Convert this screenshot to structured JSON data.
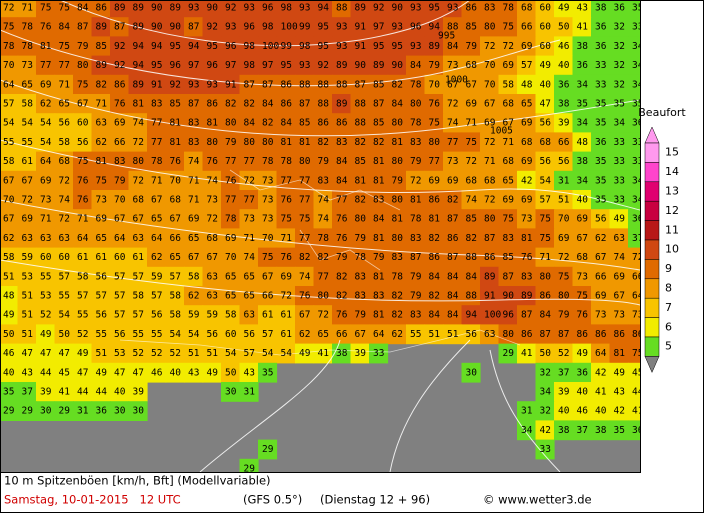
{
  "map": {
    "grid": [
      [
        72,
        71,
        75,
        75,
        84,
        86,
        89,
        89,
        90,
        89,
        93,
        90,
        92,
        93,
        96,
        98,
        93,
        94,
        88,
        89,
        92,
        90,
        93,
        95,
        93,
        86,
        83,
        78,
        68,
        60,
        49,
        43,
        38,
        36,
        35
      ],
      [
        75,
        78,
        76,
        84,
        87,
        89,
        87,
        89,
        90,
        90,
        87,
        92,
        93,
        96,
        98,
        100,
        99,
        95,
        93,
        91,
        97,
        93,
        96,
        94,
        88,
        85,
        80,
        75,
        66,
        60,
        50,
        41,
        36,
        32,
        33
      ],
      [
        78,
        78,
        81,
        75,
        79,
        85,
        92,
        94,
        94,
        95,
        94,
        95,
        96,
        98,
        100,
        99,
        98,
        95,
        93,
        91,
        95,
        95,
        93,
        89,
        84,
        79,
        72,
        72,
        69,
        60,
        46,
        38,
        36,
        32,
        34
      ],
      [
        70,
        73,
        77,
        77,
        80,
        89,
        92,
        94,
        95,
        96,
        97,
        96,
        97,
        98,
        97,
        95,
        93,
        92,
        89,
        90,
        89,
        90,
        84,
        79,
        73,
        68,
        70,
        69,
        57,
        49,
        40,
        36,
        33,
        32,
        34
      ],
      [
        64,
        65,
        69,
        71,
        75,
        82,
        86,
        89,
        91,
        92,
        93,
        93,
        91,
        87,
        87,
        86,
        88,
        88,
        88,
        87,
        85,
        82,
        78,
        70,
        67,
        67,
        70,
        58,
        48,
        40,
        36,
        34,
        33,
        32,
        34
      ],
      [
        57,
        58,
        62,
        65,
        67,
        71,
        76,
        81,
        83,
        85,
        87,
        86,
        82,
        82,
        84,
        86,
        87,
        88,
        89,
        88,
        87,
        84,
        80,
        76,
        72,
        69,
        67,
        68,
        65,
        47,
        38,
        35,
        35,
        35,
        35
      ],
      [
        54,
        54,
        54,
        56,
        60,
        63,
        69,
        74,
        77,
        81,
        83,
        81,
        80,
        84,
        82,
        84,
        85,
        86,
        86,
        88,
        85,
        80,
        78,
        75,
        74,
        71,
        69,
        67,
        69,
        56,
        39,
        34,
        35,
        34,
        36
      ],
      [
        55,
        55,
        54,
        58,
        56,
        62,
        66,
        72,
        77,
        81,
        83,
        80,
        79,
        80,
        80,
        81,
        81,
        82,
        83,
        82,
        82,
        81,
        83,
        80,
        77,
        75,
        72,
        71,
        68,
        68,
        66,
        48,
        36,
        33,
        33
      ],
      [
        58,
        61,
        64,
        68,
        75,
        81,
        83,
        80,
        78,
        76,
        74,
        76,
        77,
        77,
        78,
        78,
        80,
        79,
        84,
        85,
        81,
        80,
        79,
        77,
        73,
        72,
        71,
        68,
        69,
        56,
        56,
        38,
        35,
        33,
        33
      ],
      [
        67,
        67,
        69,
        72,
        76,
        75,
        79,
        72,
        71,
        70,
        71,
        74,
        76,
        72,
        73,
        77,
        77,
        83,
        84,
        81,
        81,
        79,
        72,
        69,
        69,
        68,
        68,
        65,
        42,
        54,
        31,
        34,
        35,
        33,
        34
      ],
      [
        70,
        72,
        73,
        74,
        76,
        73,
        70,
        68,
        67,
        68,
        71,
        73,
        77,
        77,
        73,
        76,
        77,
        74,
        77,
        82,
        83,
        80,
        81,
        86,
        82,
        74,
        72,
        69,
        69,
        57,
        51,
        40,
        35,
        33,
        34
      ],
      [
        67,
        69,
        71,
        72,
        71,
        69,
        67,
        67,
        65,
        67,
        69,
        72,
        78,
        73,
        73,
        75,
        75,
        74,
        76,
        80,
        84,
        81,
        78,
        81,
        87,
        85,
        80,
        75,
        73,
        75,
        70,
        69,
        56,
        49,
        36
      ],
      [
        62,
        63,
        63,
        63,
        64,
        65,
        64,
        63,
        64,
        66,
        65,
        68,
        69,
        71,
        70,
        71,
        77,
        78,
        76,
        79,
        81,
        80,
        83,
        82,
        86,
        82,
        87,
        83,
        81,
        75,
        69,
        67,
        62,
        63,
        37
      ],
      [
        58,
        59,
        60,
        60,
        61,
        61,
        60,
        61,
        62,
        65,
        67,
        67,
        70,
        74,
        75,
        76,
        82,
        82,
        79,
        78,
        79,
        83,
        87,
        86,
        87,
        88,
        86,
        85,
        76,
        71,
        72,
        68,
        67,
        74,
        72
      ],
      [
        51,
        53,
        55,
        57,
        58,
        56,
        57,
        57,
        59,
        57,
        58,
        63,
        65,
        65,
        67,
        69,
        74,
        77,
        82,
        83,
        81,
        78,
        79,
        84,
        84,
        84,
        89,
        87,
        83,
        80,
        75,
        73,
        66,
        69,
        66
      ],
      [
        48,
        51,
        53,
        55,
        57,
        57,
        57,
        58,
        57,
        58,
        62,
        63,
        65,
        65,
        66,
        72,
        76,
        80,
        82,
        83,
        83,
        82,
        79,
        82,
        84,
        88,
        91,
        90,
        89,
        86,
        80,
        75,
        69,
        67,
        64
      ],
      [
        49,
        51,
        52,
        54,
        55,
        56,
        57,
        57,
        56,
        58,
        59,
        59,
        58,
        63,
        61,
        61,
        67,
        72,
        76,
        79,
        81,
        82,
        83,
        84,
        84,
        94,
        100,
        96,
        87,
        84,
        79,
        76,
        73,
        73,
        73
      ],
      [
        50,
        51,
        49,
        50,
        52,
        55,
        56,
        55,
        55,
        54,
        54,
        56,
        60,
        56,
        57,
        61,
        62,
        65,
        66,
        67,
        64,
        62,
        55,
        51,
        51,
        56,
        63,
        80,
        86,
        87,
        87,
        86,
        86,
        86,
        86
      ],
      [
        46,
        47,
        47,
        47,
        49,
        51,
        53,
        52,
        52,
        52,
        51,
        51,
        54,
        57,
        54,
        54,
        49,
        41,
        38,
        39,
        33,
        null,
        null,
        null,
        null,
        null,
        null,
        29,
        41,
        50,
        52,
        49,
        64,
        81,
        75
      ],
      [
        40,
        43,
        44,
        45,
        47,
        49,
        47,
        47,
        46,
        40,
        43,
        49,
        50,
        43,
        35,
        null,
        null,
        null,
        null,
        null,
        null,
        null,
        null,
        null,
        null,
        30,
        null,
        null,
        null,
        32,
        37,
        36,
        42,
        49,
        45
      ],
      [
        35,
        37,
        39,
        41,
        44,
        44,
        40,
        39,
        null,
        null,
        null,
        null,
        30,
        31,
        null,
        null,
        null,
        null,
        null,
        null,
        null,
        null,
        null,
        null,
        null,
        null,
        null,
        null,
        null,
        34,
        39,
        40,
        41,
        43,
        44
      ],
      [
        29,
        29,
        30,
        29,
        31,
        36,
        30,
        30,
        null,
        null,
        null,
        null,
        null,
        null,
        null,
        null,
        null,
        null,
        null,
        null,
        null,
        null,
        null,
        null,
        null,
        null,
        null,
        null,
        31,
        32,
        40,
        46,
        40,
        42,
        41
      ],
      [
        null,
        null,
        null,
        null,
        null,
        null,
        null,
        null,
        null,
        null,
        null,
        null,
        null,
        null,
        null,
        null,
        null,
        null,
        null,
        null,
        null,
        null,
        null,
        null,
        null,
        null,
        null,
        null,
        34,
        42,
        38,
        37,
        38,
        35,
        36
      ],
      [
        null,
        null,
        null,
        null,
        null,
        null,
        null,
        null,
        null,
        null,
        null,
        null,
        null,
        null,
        29,
        null,
        null,
        null,
        null,
        null,
        null,
        null,
        null,
        null,
        null,
        null,
        null,
        null,
        null,
        33,
        null,
        null,
        null,
        null,
        null
      ],
      [
        null,
        null,
        null,
        null,
        null,
        null,
        null,
        null,
        null,
        null,
        null,
        null,
        null,
        29,
        null,
        null,
        null,
        null,
        null,
        null,
        null,
        null,
        null,
        null,
        null,
        null,
        null,
        null,
        null,
        null,
        null,
        null,
        null,
        null,
        null
      ]
    ],
    "isobar_labels": [
      "995",
      "1000",
      "1005"
    ]
  },
  "legend": {
    "title": "Beaufort",
    "levels": [
      15,
      14,
      13,
      12,
      11,
      10,
      9,
      8,
      7,
      6,
      5
    ],
    "colors": [
      "#ff99ee",
      "#ff44cc",
      "#e00070",
      "#c80040",
      "#b81818",
      "#d04812",
      "#e06a00",
      "#f09800",
      "#f8c400",
      "#f2ec00",
      "#66dd22"
    ]
  },
  "footer": {
    "line1": "10 m Spitzenböen [km/h, Bft] (Modellvariable)",
    "date": "Samstag, 10-01-2015   12 UTC",
    "model": "(GFS 0.5°)",
    "run": "(Dienstag 12 + 96)",
    "copyright": "© www.wetter3.de"
  }
}
